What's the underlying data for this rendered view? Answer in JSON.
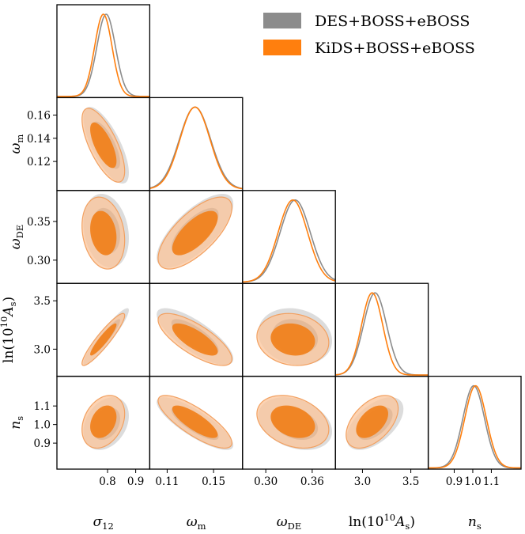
{
  "chart_data": {
    "type": "corner",
    "parameters": [
      {
        "key": "sigma12",
        "label": "σ",
        "sub": "12",
        "range": [
          0.62,
          0.95
        ],
        "ticks": [
          0.8,
          0.9
        ],
        "tick_labels": [
          "0.8",
          "0.9"
        ]
      },
      {
        "key": "omega_m",
        "label": "ω",
        "sub": "m",
        "range": [
          0.095,
          0.175
        ],
        "ticks": [
          0.11,
          0.15
        ],
        "tick_labels": [
          "0.11",
          "0.15"
        ],
        "y_ticks": [
          0.12,
          0.14,
          0.16
        ],
        "y_tick_labels": [
          "0.12",
          "0.14",
          "0.16"
        ]
      },
      {
        "key": "omega_DE",
        "label": "ω",
        "sub": "DE",
        "range": [
          0.27,
          0.39
        ],
        "ticks": [
          0.3,
          0.36
        ],
        "tick_labels": [
          "0.30",
          "0.36"
        ],
        "y_ticks": [
          0.3,
          0.35
        ],
        "y_tick_labels": [
          "0.30",
          "0.35"
        ]
      },
      {
        "key": "lnAs",
        "label": "ln(10",
        "sup": "10",
        "label2": "A",
        "sub": "s",
        "label3": ")",
        "range": [
          2.72,
          3.68
        ],
        "ticks": [
          3.0,
          3.5
        ],
        "tick_labels": [
          "3.0",
          "3.5"
        ],
        "y_ticks": [
          3.0,
          3.5
        ],
        "y_tick_labels": [
          "3.0",
          "3.5"
        ]
      },
      {
        "key": "ns",
        "label": "n",
        "sub": "s",
        "range": [
          0.76,
          1.26
        ],
        "ticks": [
          0.9,
          1.0,
          1.1
        ],
        "tick_labels": [
          "0.9",
          "1.0",
          "1.1"
        ],
        "y_ticks": [
          0.9,
          1.0,
          1.1
        ],
        "y_tick_labels": [
          "0.9",
          "1.0",
          "1.1"
        ]
      }
    ],
    "series": [
      {
        "name": "DES+BOSS+eBOSS",
        "color": "#8c8c8c",
        "means": [
          0.795,
          0.134,
          0.338,
          3.13,
          1.005
        ],
        "sigmas": [
          0.033,
          0.0135,
          0.0195,
          0.12,
          0.058
        ],
        "correlations": [
          [
            1.0,
            -0.72,
            -0.2,
            0.93,
            0.3
          ],
          [
            -0.72,
            1.0,
            0.72,
            -0.78,
            -0.82
          ],
          [
            -0.2,
            0.72,
            1.0,
            -0.15,
            -0.3
          ],
          [
            0.93,
            -0.78,
            -0.15,
            1.0,
            0.55
          ],
          [
            0.3,
            -0.82,
            -0.3,
            0.55,
            1.0
          ]
        ]
      },
      {
        "name": "KiDS+BOSS+eBOSS",
        "color": "#ff7f0e",
        "means": [
          0.785,
          0.134,
          0.335,
          3.1,
          1.015
        ],
        "sigmas": [
          0.031,
          0.013,
          0.019,
          0.11,
          0.058
        ],
        "correlations": [
          [
            1.0,
            -0.7,
            -0.2,
            0.92,
            0.3
          ],
          [
            -0.7,
            1.0,
            0.7,
            -0.75,
            -0.8
          ],
          [
            -0.2,
            0.7,
            1.0,
            -0.12,
            -0.3
          ],
          [
            0.92,
            -0.75,
            -0.12,
            1.0,
            0.5
          ],
          [
            0.3,
            -0.8,
            -0.3,
            0.5,
            1.0
          ]
        ]
      }
    ],
    "legend_position": "top-right",
    "contour_levels": [
      "68%",
      "95%"
    ]
  }
}
